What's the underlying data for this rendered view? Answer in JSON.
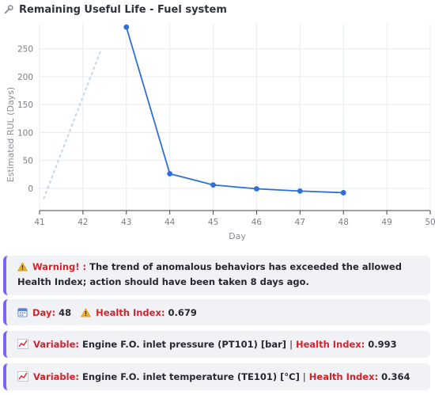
{
  "header": {
    "title": "Remaining Useful Life - Fuel system",
    "icon": "wrench-icon"
  },
  "chart_data": {
    "type": "line",
    "x": [
      43,
      44,
      45,
      46,
      47,
      48
    ],
    "y": [
      289,
      26,
      6,
      -1,
      -5,
      -8
    ],
    "xlabel": "Day",
    "ylabel": "Estimated RUL (Days)",
    "xlim": [
      41,
      50
    ],
    "ylim": [
      -40,
      295
    ],
    "xticks": [
      41,
      42,
      43,
      44,
      45,
      46,
      47,
      48,
      49,
      50
    ],
    "yticks": [
      0,
      50,
      100,
      150,
      200,
      250
    ],
    "grid": true,
    "line_color": "#2f6fd6",
    "faint_dotted_series": {
      "x": [
        41.1,
        42.4
      ],
      "y": [
        -18,
        245
      ],
      "color": "#c7d8f0"
    }
  },
  "warning": {
    "icon": "warning-icon",
    "label": "Warning! :",
    "message": "The trend of anomalous behaviors has exceeded the allowed Health Index; action should have been taken 8 days ago."
  },
  "status": {
    "calendar_icon": "calendar-icon",
    "day_label": "Day:",
    "day_value": "48",
    "health_icon": "warning-icon",
    "health_label": "Health Index:",
    "health_value": "0.679"
  },
  "variables": [
    {
      "icon": "trend-chart-icon",
      "label": "Variable:",
      "value": "Engine F.O. inlet pressure (PT101) [bar]",
      "separator": "|",
      "health_label": "Health Index:",
      "health_value": "0.993"
    },
    {
      "icon": "trend-chart-icon",
      "label": "Variable:",
      "value": "Engine F.O. inlet temperature (TE101) [°C]",
      "separator": "|",
      "health_label": "Health Index:",
      "health_value": "0.364"
    }
  ],
  "colors": {
    "accent": "#7b61ff",
    "alert_red": "#d6222b",
    "box_bg": "#f0f2f6"
  }
}
